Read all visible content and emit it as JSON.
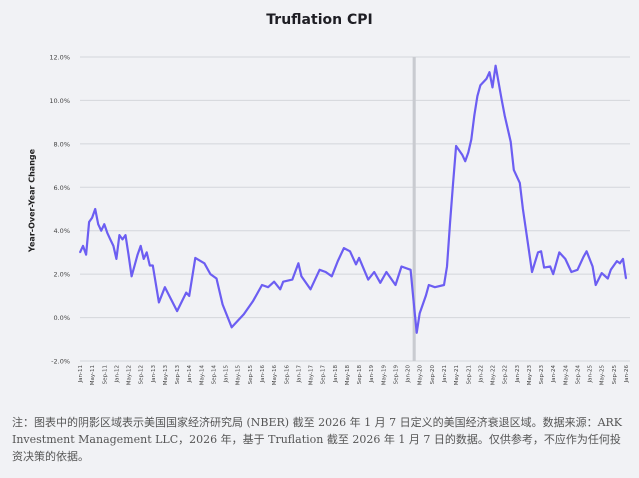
{
  "chart_data": {
    "type": "line",
    "title": "Truflation CPI",
    "xlabel": "",
    "ylabel": "Year-Over-Year Change",
    "ylim": [
      -2.0,
      12.0
    ],
    "yticks": [
      "-2.0%",
      "0.0%",
      "2.0%",
      "4.0%",
      "6.0%",
      "8.0%",
      "10.0%",
      "12.0%"
    ],
    "ytick_values": [
      -2,
      0,
      2,
      4,
      6,
      8,
      10,
      12
    ],
    "xlim": [
      "2011-01",
      "2026-01"
    ],
    "xticks": [
      "Jan-11",
      "May-11",
      "Sep-11",
      "Jan-12",
      "May-12",
      "Sep-12",
      "Jan-13",
      "May-13",
      "Sep-13",
      "Jan-14",
      "May-14",
      "Sep-14",
      "Jan-15",
      "May-15",
      "Sep-15",
      "Jan-16",
      "May-16",
      "Sep-16",
      "Jan-17",
      "May-17",
      "Sep-17",
      "Jan-18",
      "May-18",
      "Sep-18",
      "Jan-19",
      "May-19",
      "Sep-19",
      "Jan-20",
      "May-20",
      "Sep-20",
      "Jan-21",
      "May-21",
      "Sep-21",
      "Jan-22",
      "May-22",
      "Sep-22",
      "Jan-23",
      "May-23",
      "Sep-23",
      "Jan-24",
      "May-24",
      "Sep-24",
      "Jan-25",
      "May-25",
      "Sep-25",
      "Jan-26"
    ],
    "grid": "horizontal",
    "line_color": "#6c5ef2",
    "recession_shading": [
      "2020-02",
      "2020-04"
    ],
    "series": [
      {
        "x": [
          "2011-01",
          "2011-02",
          "2011-03",
          "2011-04",
          "2011-05",
          "2011-06",
          "2011-07",
          "2011-08",
          "2011-09",
          "2011-10",
          "2011-11",
          "2011-12",
          "2012-01",
          "2012-02",
          "2012-03",
          "2012-04",
          "2012-05",
          "2012-06",
          "2012-07",
          "2012-08",
          "2012-09",
          "2012-10",
          "2012-11",
          "2012-12",
          "2013-01",
          "2013-03",
          "2013-05",
          "2013-09",
          "2013-12",
          "2014-01",
          "2014-03",
          "2014-06",
          "2014-08",
          "2014-10",
          "2014-12",
          "2015-03",
          "2015-07",
          "2015-10",
          "2016-01",
          "2016-03",
          "2016-05",
          "2016-07",
          "2016-08",
          "2016-11",
          "2017-01",
          "2017-02",
          "2017-05",
          "2017-08",
          "2017-10",
          "2017-12",
          "2018-02",
          "2018-04",
          "2018-06",
          "2018-08",
          "2018-09",
          "2018-12",
          "2019-02",
          "2019-04",
          "2019-06",
          "2019-09",
          "2019-11",
          "2020-02",
          "2020-03",
          "2020-04",
          "2020-05",
          "2020-07",
          "2020-08",
          "2020-10",
          "2021-01",
          "2021-02",
          "2021-03",
          "2021-04",
          "2021-05",
          "2021-07",
          "2021-08",
          "2021-09",
          "2021-10",
          "2021-11",
          "2021-12",
          "2022-01",
          "2022-03",
          "2022-04",
          "2022-05",
          "2022-06",
          "2022-08",
          "2022-09",
          "2022-11",
          "2022-12",
          "2023-02",
          "2023-03",
          "2023-04",
          "2023-05",
          "2023-06",
          "2023-08",
          "2023-09",
          "2023-10",
          "2023-12",
          "2024-01",
          "2024-03",
          "2024-05",
          "2024-07",
          "2024-09",
          "2024-11",
          "2024-12",
          "2025-02",
          "2025-03",
          "2025-05",
          "2025-07",
          "2025-08",
          "2025-10",
          "2025-11",
          "2025-12",
          "2026-01"
        ],
        "y": [
          3.0,
          3.3,
          2.9,
          4.4,
          4.6,
          5.0,
          4.3,
          4.0,
          4.3,
          3.9,
          3.6,
          3.3,
          2.7,
          3.8,
          3.6,
          3.8,
          2.9,
          1.9,
          2.4,
          2.9,
          3.3,
          2.7,
          3.0,
          2.4,
          2.4,
          0.7,
          1.4,
          0.3,
          1.15,
          1.0,
          2.75,
          2.5,
          2.0,
          1.8,
          0.6,
          -0.45,
          0.15,
          0.75,
          1.5,
          1.4,
          1.65,
          1.3,
          1.65,
          1.75,
          2.5,
          1.9,
          1.3,
          2.2,
          2.1,
          1.9,
          2.6,
          3.2,
          3.05,
          2.45,
          2.75,
          1.75,
          2.1,
          1.6,
          2.1,
          1.5,
          2.35,
          2.2,
          0.7,
          -0.7,
          0.2,
          1.0,
          1.5,
          1.4,
          1.5,
          2.35,
          4.4,
          6.2,
          7.9,
          7.5,
          7.2,
          7.6,
          8.2,
          9.3,
          10.2,
          10.7,
          11.0,
          11.3,
          10.6,
          11.6,
          10.05,
          9.3,
          8.1,
          6.8,
          6.2,
          5.0,
          4.05,
          3.1,
          2.1,
          3.0,
          3.05,
          2.3,
          2.35,
          2.0,
          3.0,
          2.7,
          2.1,
          2.2,
          2.8,
          3.05,
          2.35,
          1.5,
          2.05,
          1.8,
          2.2,
          2.6,
          2.5,
          2.7,
          1.8
        ]
      }
    ]
  },
  "footnote": "注：图表中的阴影区域表示美国国家经济研究局 (NBER) 截至 2026 年 1 月 7 日定义的美国经济衰退区域。数据来源：ARK Investment Management LLC，2026 年，基于 Truflation 截至 2026 年 1 月 7 日的数据。仅供参考，不应作为任何投资决策的依据。"
}
